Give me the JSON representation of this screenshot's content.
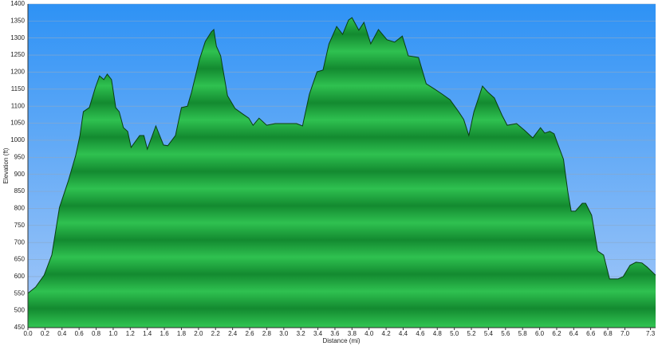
{
  "chart_data": {
    "type": "area",
    "x_label": "Distance   (mi)",
    "y_label": "Elevation (ft)",
    "color": "#1f9e3c",
    "grid": true,
    "xlim": [
      0,
      7.36
    ],
    "ylim": [
      450,
      1400
    ],
    "xticks": [
      {
        "value": 0,
        "label": "0.0"
      },
      0.2,
      0.4,
      0.6,
      0.8,
      {
        "value": 1,
        "label": "1.0"
      },
      1.2,
      1.4,
      1.6,
      1.8,
      {
        "value": 2,
        "label": "2.0"
      },
      2.2,
      2.4,
      2.6,
      2.8,
      {
        "value": 3,
        "label": "3.0"
      },
      3.2,
      3.4,
      3.6,
      3.8,
      {
        "value": 4,
        "label": "4.0"
      },
      4.2,
      4.4,
      4.6,
      4.8,
      {
        "value": 5,
        "label": "5.0"
      },
      5.2,
      5.4,
      5.6,
      5.8,
      {
        "value": 6,
        "label": "6.0"
      },
      6.2,
      6.4,
      6.6,
      6.8,
      {
        "value": 7,
        "label": "7.0"
      },
      7.3
    ],
    "yticks": [
      450,
      500,
      550,
      600,
      650,
      700,
      750,
      800,
      850,
      900,
      950,
      1000,
      1050,
      1100,
      1150,
      1200,
      1250,
      1300,
      1350,
      1400
    ],
    "x": [
      0,
      0.09,
      0.19,
      0.28,
      0.37,
      0.47,
      0.56,
      0.61,
      0.65,
      0.72,
      0.79,
      0.84,
      0.89,
      0.93,
      0.98,
      1.03,
      1.07,
      1.12,
      1.17,
      1.21,
      1.31,
      1.36,
      1.4,
      1.5,
      1.59,
      1.64,
      1.73,
      1.8,
      1.87,
      1.92,
      2.01,
      2.08,
      2.15,
      2.18,
      2.21,
      2.26,
      2.34,
      2.43,
      2.52,
      2.59,
      2.64,
      2.71,
      2.8,
      2.9,
      2.99,
      3.08,
      3.15,
      3.22,
      3.3,
      3.39,
      3.46,
      3.53,
      3.62,
      3.69,
      3.76,
      3.8,
      3.88,
      3.94,
      4.02,
      4.11,
      4.21,
      4.3,
      4.39,
      4.46,
      4.58,
      4.67,
      4.77,
      4.86,
      4.95,
      5.05,
      5.11,
      5.17,
      5.23,
      5.33,
      5.39,
      5.47,
      5.56,
      5.62,
      5.73,
      5.82,
      5.92,
      6.01,
      6.06,
      6.12,
      6.17,
      6.21,
      6.28,
      6.33,
      6.37,
      6.42,
      6.5,
      6.54,
      6.61,
      6.68,
      6.75,
      6.82,
      6.92,
      6.98,
      7.06,
      7.13,
      7.2,
      7.26,
      7.36
    ],
    "values": [
      551,
      569,
      604,
      663,
      803,
      878,
      955,
      1014,
      1084,
      1096,
      1154,
      1189,
      1178,
      1194,
      1178,
      1096,
      1084,
      1037,
      1026,
      979,
      1014,
      1014,
      974,
      1042,
      986,
      984,
      1014,
      1096,
      1100,
      1142,
      1236,
      1290,
      1318,
      1325,
      1276,
      1248,
      1131,
      1093,
      1077,
      1065,
      1044,
      1065,
      1044,
      1049,
      1049,
      1049,
      1049,
      1042,
      1135,
      1201,
      1206,
      1283,
      1334,
      1311,
      1353,
      1360,
      1323,
      1346,
      1283,
      1325,
      1295,
      1288,
      1306,
      1248,
      1243,
      1166,
      1150,
      1135,
      1119,
      1084,
      1061,
      1014,
      1084,
      1159,
      1142,
      1124,
      1073,
      1044,
      1049,
      1030,
      1007,
      1037,
      1021,
      1026,
      1019,
      991,
      944,
      850,
      792,
      792,
      815,
      815,
      780,
      675,
      663,
      593,
      593,
      600,
      633,
      642,
      640,
      628,
      604
    ]
  }
}
